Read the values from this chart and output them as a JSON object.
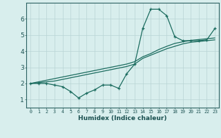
{
  "xlabel": "Humidex (Indice chaleur)",
  "x_values": [
    0,
    1,
    2,
    3,
    4,
    5,
    6,
    7,
    8,
    9,
    10,
    11,
    12,
    13,
    14,
    15,
    16,
    17,
    18,
    19,
    20,
    21,
    22,
    23
  ],
  "line1_y": [
    2.0,
    2.0,
    2.0,
    1.9,
    1.8,
    1.5,
    1.1,
    1.4,
    1.6,
    1.9,
    1.9,
    1.7,
    2.6,
    3.2,
    5.4,
    6.6,
    6.6,
    6.2,
    4.9,
    4.65,
    4.65,
    4.65,
    4.7,
    5.4
  ],
  "line2_y": [
    2.0,
    2.05,
    2.1,
    2.15,
    2.25,
    2.35,
    2.45,
    2.55,
    2.65,
    2.75,
    2.85,
    2.95,
    3.05,
    3.2,
    3.55,
    3.75,
    3.95,
    4.15,
    4.3,
    4.45,
    4.55,
    4.6,
    4.65,
    4.7
  ],
  "line3_y": [
    2.0,
    2.1,
    2.2,
    2.3,
    2.4,
    2.5,
    2.6,
    2.7,
    2.8,
    2.9,
    3.0,
    3.1,
    3.2,
    3.35,
    3.65,
    3.85,
    4.1,
    4.3,
    4.48,
    4.58,
    4.67,
    4.72,
    4.77,
    4.82
  ],
  "line_color": "#1a6b5e",
  "bg_color": "#d8eeed",
  "grid_color": "#b8d4d4",
  "ylim": [
    0.5,
    7.0
  ],
  "xlim": [
    -0.5,
    23.5
  ],
  "yticks": [
    1,
    2,
    3,
    4,
    5,
    6
  ],
  "xticks": [
    0,
    1,
    2,
    3,
    4,
    5,
    6,
    7,
    8,
    9,
    10,
    11,
    12,
    13,
    14,
    15,
    16,
    17,
    18,
    19,
    20,
    21,
    22,
    23
  ]
}
